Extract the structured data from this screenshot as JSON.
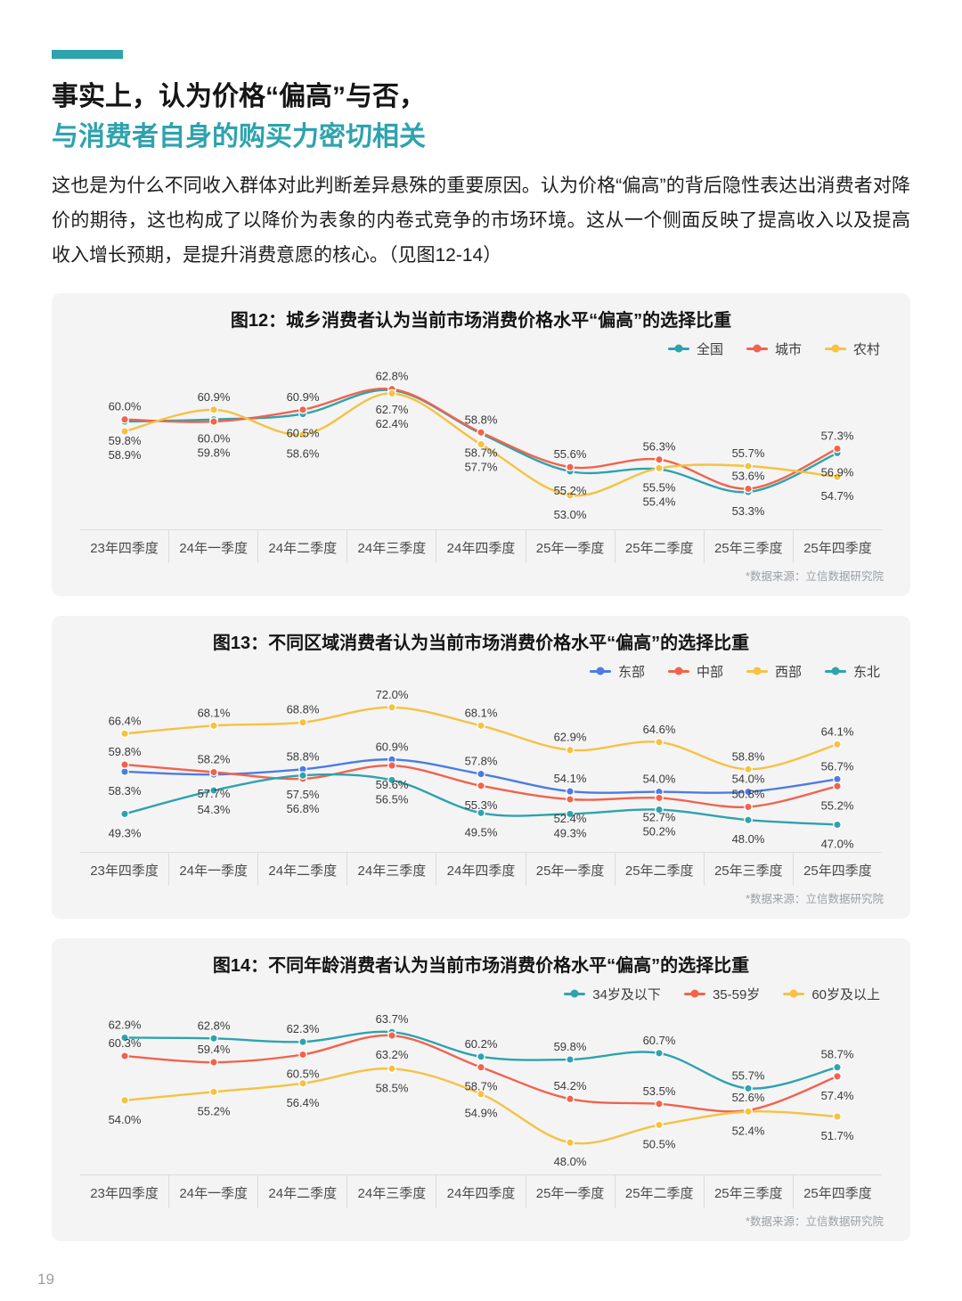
{
  "header": {
    "title_line1": "事实上，认为价格“偏高”与否，",
    "title_line2": "与消费者自身的购买力密切相关",
    "paragraph": "这也是为什么不同收入群体对此判断差异悬殊的重要原因。认为价格“偏高”的背后隐性表达出消费者对降价的期待，这也构成了以降价为表象的内卷式竞争的市场环境。这从一个侧面反映了提高收入以及提高收入增长预期，是提升消费意愿的核心。（见图12-14）"
  },
  "page_number": "19",
  "colors": {
    "teal": "#2EA3AE",
    "red": "#F1634C",
    "yellow": "#F5C242",
    "blue": "#4D7BE3",
    "panel_background": "#F4F4F5"
  },
  "chart_data": [
    {
      "id": "fig12",
      "type": "line",
      "title": "图12：城乡消费者认为当前市场消费价格水平“偏高”的选择比重",
      "categories": [
        "23年四季度",
        "24年一季度",
        "24年二季度",
        "24年三季度",
        "24年四季度",
        "25年一季度",
        "25年二季度",
        "25年三季度",
        "25年四季度"
      ],
      "series": [
        {
          "name": "全国",
          "color": "#2EA3AE",
          "values": [
            59.8,
            60.0,
            60.5,
            62.7,
            58.7,
            55.2,
            55.4,
            53.3,
            56.9
          ]
        },
        {
          "name": "城市",
          "color": "#F1634C",
          "values": [
            60.0,
            59.8,
            60.9,
            62.8,
            58.8,
            55.6,
            56.3,
            53.6,
            57.3
          ]
        },
        {
          "name": "农村",
          "color": "#F5C242",
          "values": [
            58.9,
            60.9,
            58.6,
            62.4,
            57.7,
            53.0,
            55.5,
            55.7,
            54.7
          ]
        }
      ],
      "ylim": [
        51.5,
        64.5
      ],
      "grid": false,
      "legend_position": "top-right",
      "source": "*数据来源：立信数据研究院"
    },
    {
      "id": "fig13",
      "type": "line",
      "title": "图13：不同区域消费者认为当前市场消费价格水平“偏高”的选择比重",
      "categories": [
        "23年四季度",
        "24年一季度",
        "24年二季度",
        "24年三季度",
        "24年四季度",
        "25年一季度",
        "25年二季度",
        "25年三季度",
        "25年四季度"
      ],
      "series": [
        {
          "name": "东部",
          "color": "#4D7BE3",
          "values": [
            58.3,
            57.7,
            58.8,
            60.9,
            57.8,
            54.1,
            54.0,
            54.0,
            56.7
          ]
        },
        {
          "name": "中部",
          "color": "#F1634C",
          "values": [
            59.8,
            58.2,
            56.8,
            59.6,
            55.3,
            52.4,
            52.7,
            50.8,
            55.2
          ]
        },
        {
          "name": "西部",
          "color": "#F5C242",
          "values": [
            66.4,
            68.1,
            68.8,
            72.0,
            68.1,
            62.9,
            64.6,
            58.8,
            64.1
          ]
        },
        {
          "name": "东北",
          "color": "#2EA3AE",
          "values": [
            49.3,
            54.3,
            57.5,
            56.5,
            49.5,
            49.3,
            50.2,
            48.0,
            47.0
          ]
        }
      ],
      "ylim": [
        45,
        75
      ],
      "grid": false,
      "legend_position": "top-right",
      "source": "*数据来源：立信数据研究院"
    },
    {
      "id": "fig14",
      "type": "line",
      "title": "图14：不同年龄消费者认为当前市场消费价格水平“偏高”的选择比重",
      "categories": [
        "23年四季度",
        "24年一季度",
        "24年二季度",
        "24年三季度",
        "24年四季度",
        "25年一季度",
        "25年二季度",
        "25年三季度",
        "25年四季度"
      ],
      "series": [
        {
          "name": "34岁及以下",
          "color": "#2EA3AE",
          "values": [
            62.9,
            62.8,
            62.3,
            63.7,
            60.2,
            59.8,
            60.7,
            55.7,
            58.7
          ]
        },
        {
          "name": "35-59岁",
          "color": "#F1634C",
          "values": [
            60.3,
            59.4,
            60.5,
            63.2,
            58.7,
            54.2,
            53.5,
            52.6,
            57.4
          ]
        },
        {
          "name": "60岁及以上",
          "color": "#F5C242",
          "values": [
            54.0,
            55.2,
            56.4,
            58.5,
            54.9,
            48.0,
            50.5,
            52.4,
            51.7
          ]
        }
      ],
      "ylim": [
        46,
        66
      ],
      "grid": false,
      "legend_position": "top-right",
      "source": "*数据来源：立信数据研究院"
    }
  ]
}
